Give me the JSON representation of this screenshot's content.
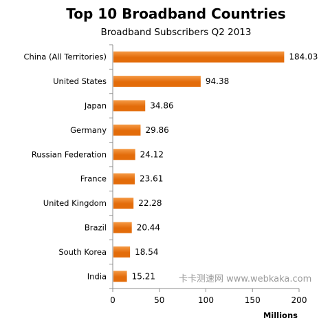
{
  "chart_data": {
    "type": "bar",
    "orientation": "horizontal",
    "title": "Top 10 Broadband Countries",
    "subtitle": "Broadband Subscribers Q2 2013",
    "xlabel": "Millions",
    "categories": [
      "China (All Territories)",
      "United States",
      "Japan",
      "Germany",
      "Russian Federation",
      "France",
      "United Kingdom",
      "Brazil",
      "South Korea",
      "India"
    ],
    "values": [
      184.03,
      94.38,
      34.86,
      29.86,
      24.12,
      23.61,
      22.28,
      20.44,
      18.54,
      15.21
    ],
    "value_labels": [
      "184.03",
      "94.38",
      "34.86",
      "29.86",
      "24.12",
      "23.61",
      "22.28",
      "20.44",
      "18.54",
      "15.21"
    ],
    "xlim": [
      0,
      200
    ],
    "xticks": [
      0,
      50,
      100,
      150,
      200
    ],
    "grid": false,
    "bar_color": "#e36c0a",
    "bar_gradient_light": "#f59a45"
  },
  "watermark": "卡卡测速网 www.webkaka.com"
}
